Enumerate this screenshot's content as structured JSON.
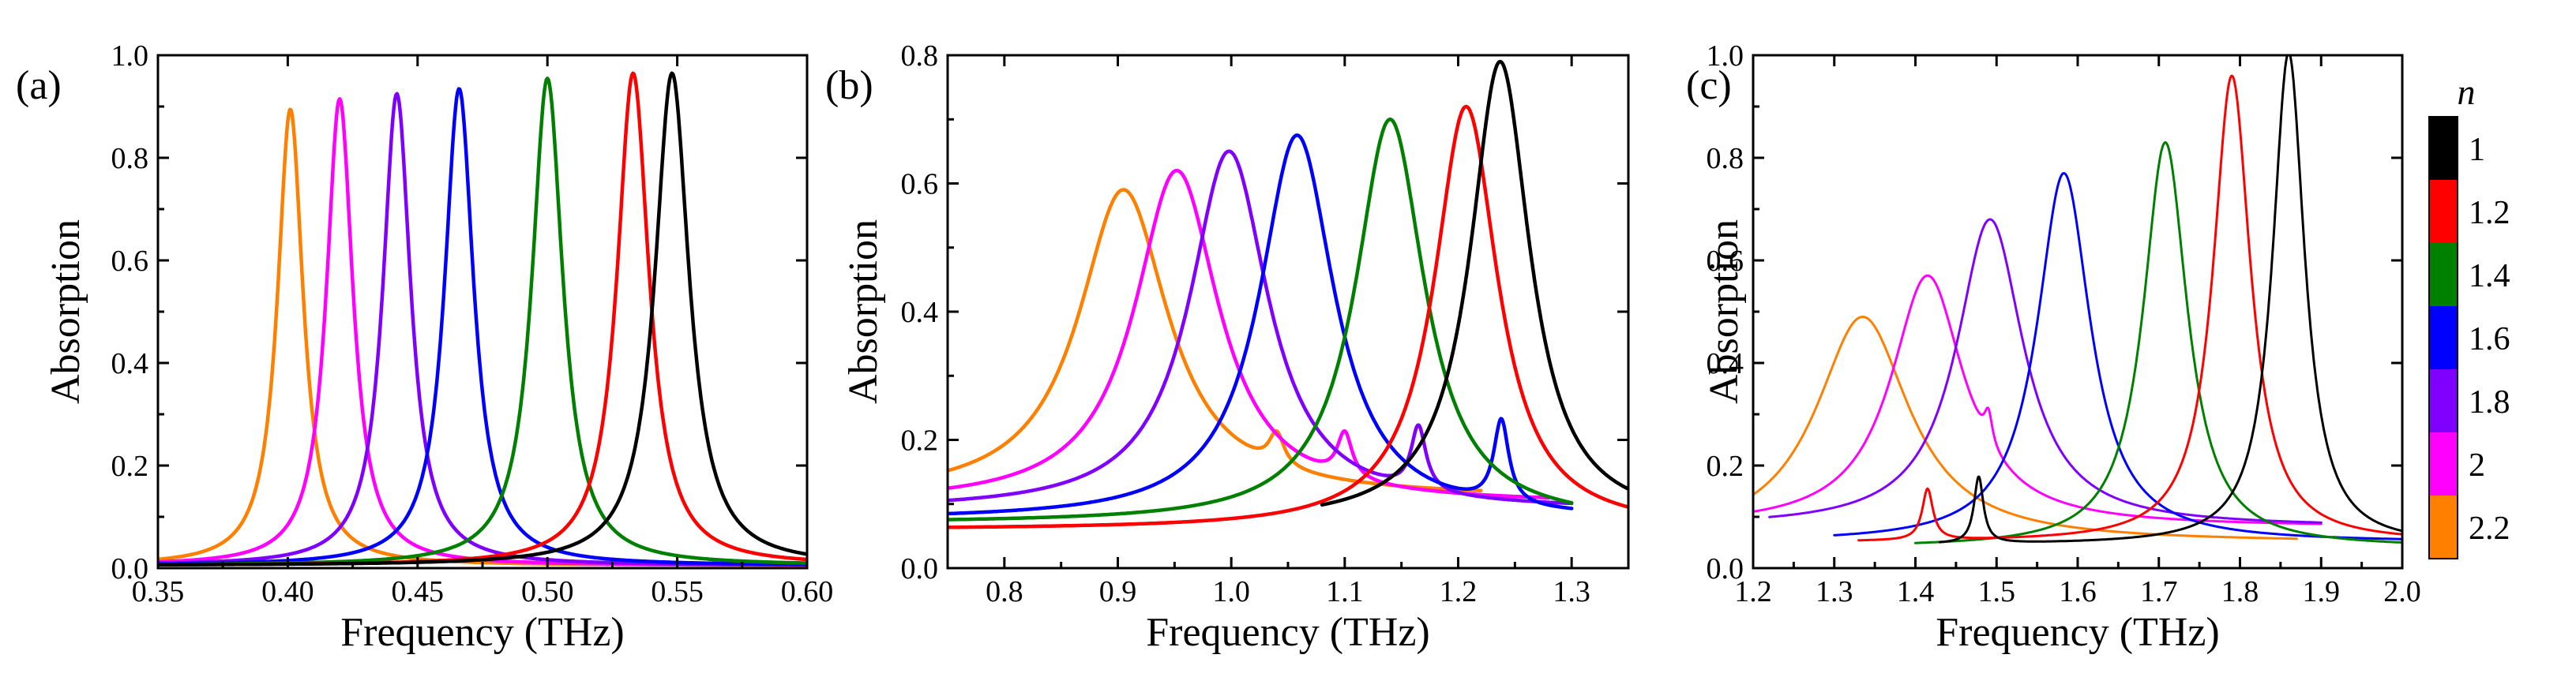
{
  "colors": {
    "n1": "#000000",
    "n1.2": "#ff0000",
    "n1.4": "#008000",
    "n1.6": "#0000ff",
    "n1.8": "#8000ff",
    "n2": "#ff00ff",
    "n2.2": "#ff8000"
  },
  "legend": {
    "title": "n",
    "entries": [
      {
        "label": "1",
        "color": "#000000"
      },
      {
        "label": "1.2",
        "color": "#ff0000"
      },
      {
        "label": "1.4",
        "color": "#008000"
      },
      {
        "label": "1.6",
        "color": "#0000ff"
      },
      {
        "label": "1.8",
        "color": "#8000ff"
      },
      {
        "label": "2",
        "color": "#ff00ff"
      },
      {
        "label": "2.2",
        "color": "#ff8000"
      }
    ]
  },
  "chart_data": [
    {
      "panel": "(a)",
      "type": "line",
      "title": "",
      "xlabel": "Frequency (THz)",
      "ylabel": "Absorption",
      "xlim": [
        0.35,
        0.6
      ],
      "ylim": [
        0.0,
        1.0
      ],
      "xticks": [
        "0.35",
        "0.40",
        "0.45",
        "0.50",
        "0.55",
        "0.60"
      ],
      "yticks": [
        "0.0",
        "0.2",
        "0.4",
        "0.6",
        "0.8",
        "1.0"
      ],
      "series": [
        {
          "name": "n=2.2",
          "color": "#ff8000",
          "peaks": [
            {
              "f": 0.401,
              "a": 0.89,
              "w": 0.006
            }
          ],
          "base": 0.005
        },
        {
          "name": "n=2",
          "color": "#ff00ff",
          "peaks": [
            {
              "f": 0.42,
              "a": 0.91,
              "w": 0.0062
            }
          ],
          "base": 0.005
        },
        {
          "name": "n=1.8",
          "color": "#8000ff",
          "peaks": [
            {
              "f": 0.442,
              "a": 0.92,
              "w": 0.0065
            }
          ],
          "base": 0.005
        },
        {
          "name": "n=1.6",
          "color": "#0000ff",
          "peaks": [
            {
              "f": 0.466,
              "a": 0.93,
              "w": 0.0068
            }
          ],
          "base": 0.005
        },
        {
          "name": "n=1.4",
          "color": "#008000",
          "peaks": [
            {
              "f": 0.5,
              "a": 0.95,
              "w": 0.0072
            }
          ],
          "base": 0.005
        },
        {
          "name": "n=1.2",
          "color": "#ff0000",
          "peaks": [
            {
              "f": 0.533,
              "a": 0.96,
              "w": 0.0075
            }
          ],
          "base": 0.005
        },
        {
          "name": "n=1",
          "color": "#000000",
          "peaks": [
            {
              "f": 0.548,
              "a": 0.96,
              "w": 0.008
            }
          ],
          "base": 0.005
        }
      ]
    },
    {
      "panel": "(b)",
      "type": "line",
      "title": "",
      "xlabel": "Frequency (THz)",
      "ylabel": "Absorption",
      "xlim": [
        0.75,
        1.35
      ],
      "ylim": [
        0.0,
        0.8
      ],
      "xticks": [
        "0.8",
        "0.9",
        "1.0",
        "1.1",
        "1.2",
        "1.3"
      ],
      "yticks": [
        "0.0",
        "0.2",
        "0.4",
        "0.6",
        "0.8"
      ],
      "series": [
        {
          "name": "n=2.2",
          "color": "#ff8000",
          "range": [
            0.75,
            1.22
          ],
          "peaks": [
            {
              "f": 0.905,
              "a": 0.48,
              "w": 0.048
            },
            {
              "f": 1.04,
              "a": 0.05,
              "w": 0.008
            }
          ],
          "base": 0.11
        },
        {
          "name": "n=2",
          "color": "#ff00ff",
          "range": [
            0.75,
            1.28
          ],
          "peaks": [
            {
              "f": 0.952,
              "a": 0.52,
              "w": 0.045
            },
            {
              "f": 1.1,
              "a": 0.07,
              "w": 0.008
            }
          ],
          "base": 0.1
        },
        {
          "name": "n=1.8",
          "color": "#8000ff",
          "range": [
            0.75,
            1.3
          ],
          "peaks": [
            {
              "f": 0.998,
              "a": 0.56,
              "w": 0.042
            },
            {
              "f": 1.165,
              "a": 0.1,
              "w": 0.008
            }
          ],
          "base": 0.09
        },
        {
          "name": "n=1.6",
          "color": "#0000ff",
          "range": [
            0.75,
            1.3
          ],
          "peaks": [
            {
              "f": 1.058,
              "a": 0.6,
              "w": 0.04
            },
            {
              "f": 1.238,
              "a": 0.13,
              "w": 0.008
            }
          ],
          "base": 0.075
        },
        {
          "name": "n=1.4",
          "color": "#008000",
          "range": [
            0.75,
            1.3
          ],
          "peaks": [
            {
              "f": 1.14,
              "a": 0.63,
              "w": 0.037
            }
          ],
          "base": 0.07
        },
        {
          "name": "n=1.2",
          "color": "#ff0000",
          "range": [
            0.75,
            1.35
          ],
          "peaks": [
            {
              "f": 1.207,
              "a": 0.66,
              "w": 0.034
            }
          ],
          "base": 0.06
        },
        {
          "name": "n=1",
          "color": "#000000",
          "range": [
            1.08,
            1.35
          ],
          "peaks": [
            {
              "f": 1.237,
              "a": 0.72,
              "w": 0.032
            }
          ],
          "base": 0.07
        }
      ]
    },
    {
      "panel": "(c)",
      "type": "line",
      "title": "",
      "xlabel": "Frequency (THz)",
      "ylabel": "Absorption",
      "xlim": [
        1.2,
        2.0
      ],
      "ylim": [
        0.0,
        1.0
      ],
      "xticks": [
        "1.2",
        "1.3",
        "1.4",
        "1.5",
        "1.6",
        "1.7",
        "1.8",
        "1.9",
        "2.0"
      ],
      "yticks": [
        "0.0",
        "0.2",
        "0.4",
        "0.6",
        "0.8",
        "1.0"
      ],
      "series": [
        {
          "name": "n=2.2",
          "color": "#ff8000",
          "range": [
            1.2,
            1.87
          ],
          "peaks": [
            {
              "f": 1.335,
              "a": 0.44,
              "w": 0.07
            }
          ],
          "base": 0.05
        },
        {
          "name": "n=2",
          "color": "#ff00ff",
          "range": [
            1.2,
            1.9
          ],
          "peaks": [
            {
              "f": 1.415,
              "a": 0.49,
              "w": 0.055
            },
            {
              "f": 1.49,
              "a": 0.06,
              "w": 0.006
            }
          ],
          "base": 0.08
        },
        {
          "name": "n=1.8",
          "color": "#8000ff",
          "range": [
            1.22,
            1.9
          ],
          "peaks": [
            {
              "f": 1.492,
              "a": 0.6,
              "w": 0.05
            }
          ],
          "base": 0.08
        },
        {
          "name": "n=1.6",
          "color": "#0000ff",
          "range": [
            1.3,
            2.0
          ],
          "peaks": [
            {
              "f": 1.583,
              "a": 0.72,
              "w": 0.04
            }
          ],
          "base": 0.05
        },
        {
          "name": "n=1.4",
          "color": "#008000",
          "range": [
            1.4,
            2.0
          ],
          "peaks": [
            {
              "f": 1.708,
              "a": 0.79,
              "w": 0.033
            }
          ],
          "base": 0.04
        },
        {
          "name": "n=1.2",
          "color": "#ff0000",
          "range": [
            1.33,
            2.0
          ],
          "peaks": [
            {
              "f": 1.415,
              "a": 0.1,
              "w": 0.008
            },
            {
              "f": 1.79,
              "a": 0.91,
              "w": 0.028
            }
          ],
          "base": 0.05
        },
        {
          "name": "n=1",
          "color": "#000000",
          "range": [
            1.43,
            2.0
          ],
          "peaks": [
            {
              "f": 1.478,
              "a": 0.13,
              "w": 0.007
            },
            {
              "f": 1.86,
              "a": 0.96,
              "w": 0.024
            }
          ],
          "base": 0.045
        }
      ]
    }
  ]
}
